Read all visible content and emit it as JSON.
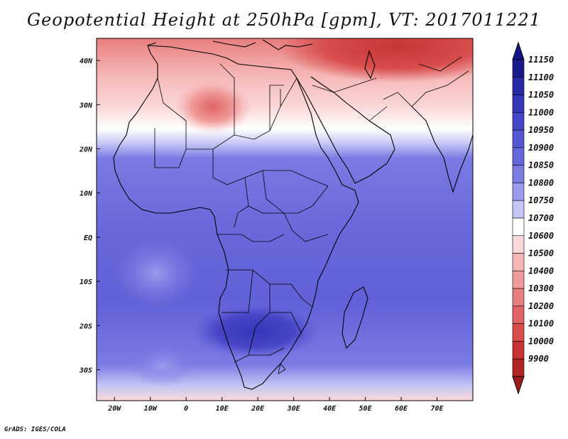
{
  "title": "Geopotential Height at 250hPa [gpm], VT: 2017011221",
  "credit": "GrADS: IGES/COLA",
  "map": {
    "lon_range": [
      -25,
      80
    ],
    "lat_range": [
      -37,
      45
    ],
    "x_ticks": [
      {
        "lon": -20,
        "label": "20W"
      },
      {
        "lon": -10,
        "label": "10W"
      },
      {
        "lon": 0,
        "label": "0"
      },
      {
        "lon": 10,
        "label": "10E"
      },
      {
        "lon": 20,
        "label": "20E"
      },
      {
        "lon": 30,
        "label": "30E"
      },
      {
        "lon": 40,
        "label": "40E"
      },
      {
        "lon": 50,
        "label": "50E"
      },
      {
        "lon": 60,
        "label": "60E"
      },
      {
        "lon": 70,
        "label": "70E"
      }
    ],
    "y_ticks": [
      {
        "lat": 40,
        "label": "40N"
      },
      {
        "lat": 30,
        "label": "30N"
      },
      {
        "lat": 20,
        "label": "20N"
      },
      {
        "lat": 10,
        "label": "10N"
      },
      {
        "lat": 0,
        "label": "EQ"
      },
      {
        "lat": -10,
        "label": "10S"
      },
      {
        "lat": -20,
        "label": "20S"
      },
      {
        "lat": -30,
        "label": "30S"
      }
    ]
  },
  "colorbar": {
    "levels": [
      {
        "label": "11150",
        "color": "#1a1a8c"
      },
      {
        "label": "11100",
        "color": "#2929a6"
      },
      {
        "label": "11050",
        "color": "#3535b8"
      },
      {
        "label": "11000",
        "color": "#4646c6"
      },
      {
        "label": "10950",
        "color": "#5656d2"
      },
      {
        "label": "10900",
        "color": "#6767dc"
      },
      {
        "label": "10850",
        "color": "#7b7be4"
      },
      {
        "label": "10800",
        "color": "#9a9aec"
      },
      {
        "label": "10750",
        "color": "#c6c6f6"
      },
      {
        "label": "10700",
        "color": "#ffffff"
      },
      {
        "label": "10600",
        "color": "#fbd8d8"
      },
      {
        "label": "10500",
        "color": "#f6b6b6"
      },
      {
        "label": "10400",
        "color": "#f09a9a"
      },
      {
        "label": "10300",
        "color": "#e87e7e"
      },
      {
        "label": "10200",
        "color": "#e06464"
      },
      {
        "label": "10100",
        "color": "#d84c4c"
      },
      {
        "label": "10000",
        "color": "#c83434"
      },
      {
        "label": "9900",
        "color": "#b02424"
      }
    ],
    "top_arrow_color": "#14148a",
    "bottom_arrow_color": "#a01c1c"
  }
}
